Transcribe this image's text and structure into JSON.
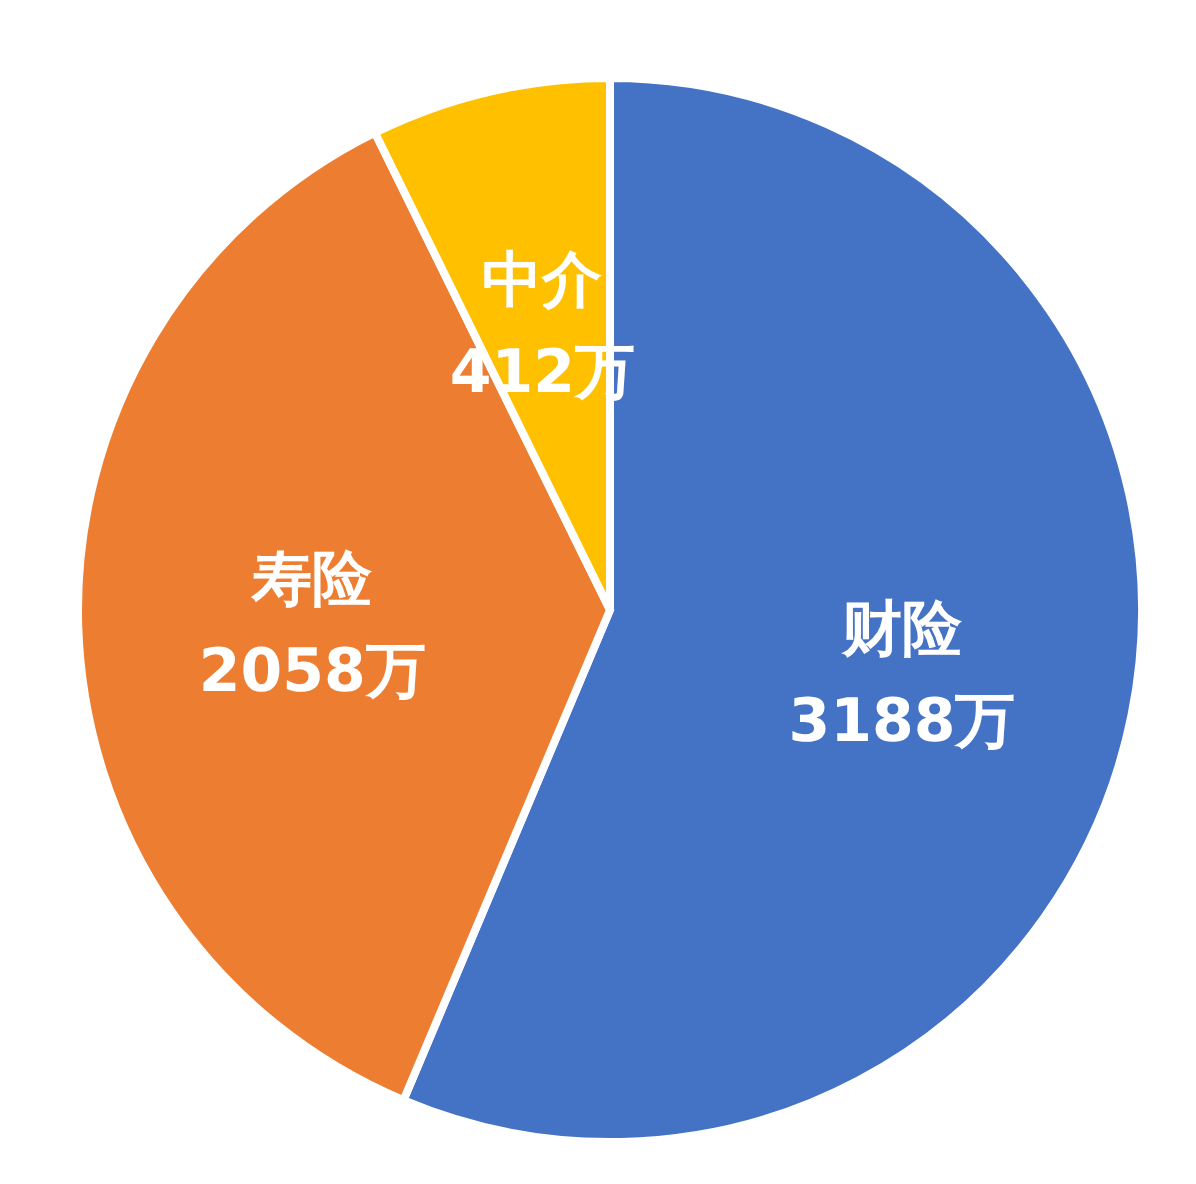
{
  "chart_data": {
    "type": "pie",
    "categories": [
      "财险",
      "寿险",
      "中介"
    ],
    "values": [
      3188,
      2058,
      412
    ],
    "colors": [
      "#4472c4",
      "#ed7d31",
      "#ffc000"
    ],
    "value_labels": [
      "3188万",
      "2058万",
      "412万"
    ]
  }
}
